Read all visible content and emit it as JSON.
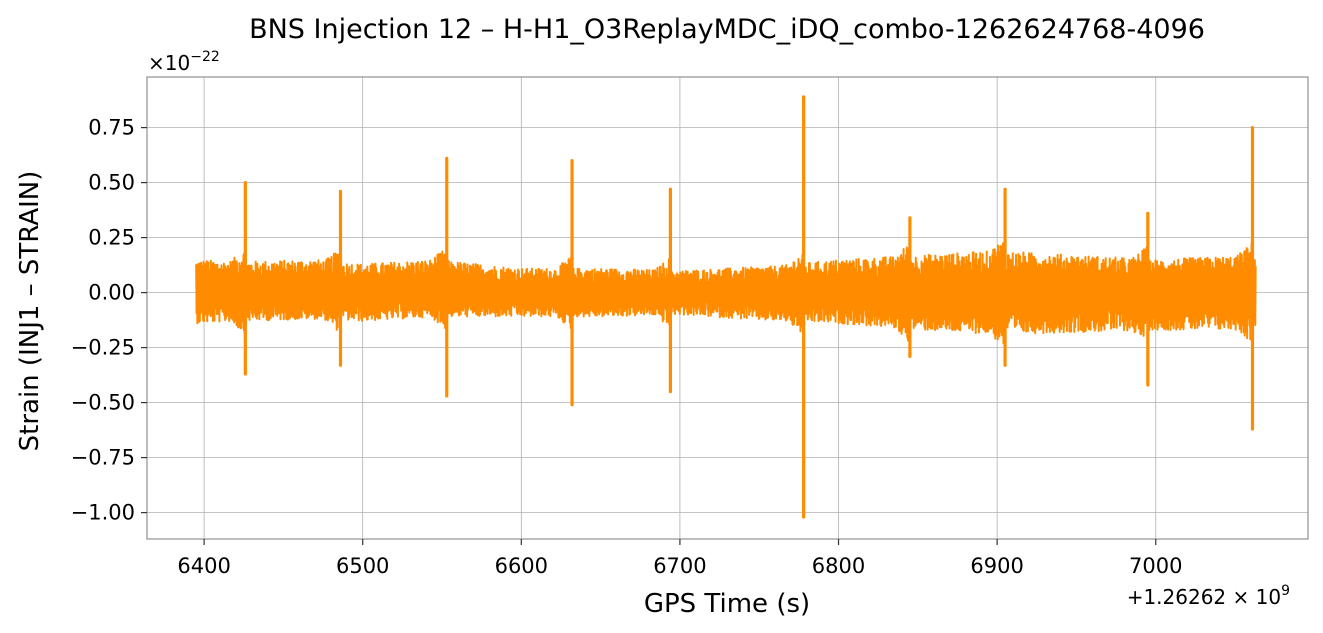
{
  "chart_data": {
    "type": "line",
    "title": "BNS Injection 12 – H-H1_O3ReplayMDC_iDQ_combo-1262624768-4096",
    "xlabel": "GPS Time (s)",
    "ylabel": "Strain (INJ1 – STRAIN)",
    "x_offset_label": "+1.26262 × 10",
    "x_offset_exponent": "9",
    "y_multiplier_label": "×10",
    "y_multiplier_exponent": "−22",
    "xlim": [
      6364,
      7096
    ],
    "ylim": [
      -1.12,
      0.98
    ],
    "xticks": [
      6400,
      6500,
      6600,
      6700,
      6800,
      6900,
      7000
    ],
    "xtick_labels": [
      "6400",
      "6500",
      "6600",
      "6700",
      "6800",
      "6900",
      "7000"
    ],
    "yticks": [
      0.75,
      0.5,
      0.25,
      0.0,
      -0.25,
      -0.5,
      -0.75,
      -1.0
    ],
    "ytick_labels": [
      "0.75",
      "0.50",
      "0.25",
      "0.00",
      "−0.25",
      "−0.50",
      "−0.75",
      "−1.00"
    ],
    "grid": true,
    "series": [
      {
        "color": "#ff8c00",
        "x_start": 6395,
        "x_end": 7063,
        "noise_envelope": [
          {
            "x": 6395,
            "upper": 0.15,
            "lower": -0.14
          },
          {
            "x": 6420,
            "upper": 0.14,
            "lower": -0.13
          },
          {
            "x": 6470,
            "upper": 0.15,
            "lower": -0.12
          },
          {
            "x": 6500,
            "upper": 0.13,
            "lower": -0.13
          },
          {
            "x": 6545,
            "upper": 0.15,
            "lower": -0.11
          },
          {
            "x": 6600,
            "upper": 0.11,
            "lower": -0.11
          },
          {
            "x": 6650,
            "upper": 0.11,
            "lower": -0.11
          },
          {
            "x": 6700,
            "upper": 0.1,
            "lower": -0.1
          },
          {
            "x": 6760,
            "upper": 0.12,
            "lower": -0.13
          },
          {
            "x": 6800,
            "upper": 0.15,
            "lower": -0.14
          },
          {
            "x": 6850,
            "upper": 0.17,
            "lower": -0.17
          },
          {
            "x": 6900,
            "upper": 0.19,
            "lower": -0.19
          },
          {
            "x": 6950,
            "upper": 0.17,
            "lower": -0.18
          },
          {
            "x": 7000,
            "upper": 0.15,
            "lower": -0.17
          },
          {
            "x": 7063,
            "upper": 0.17,
            "lower": -0.17
          }
        ],
        "spikes": [
          {
            "x": 6426,
            "peak": 0.5,
            "trough": -0.37
          },
          {
            "x": 6486,
            "peak": 0.46,
            "trough": -0.33
          },
          {
            "x": 6553,
            "peak": 0.61,
            "trough": -0.47
          },
          {
            "x": 6632,
            "peak": 0.6,
            "trough": -0.51
          },
          {
            "x": 6694,
            "peak": 0.47,
            "trough": -0.45
          },
          {
            "x": 6778,
            "peak": 0.89,
            "trough": -1.02
          },
          {
            "x": 6845,
            "peak": 0.34,
            "trough": -0.29
          },
          {
            "x": 6905,
            "peak": 0.47,
            "trough": -0.33
          },
          {
            "x": 6995,
            "peak": 0.36,
            "trough": -0.42
          },
          {
            "x": 7061,
            "peak": 0.75,
            "trough": -0.62
          }
        ]
      }
    ]
  }
}
